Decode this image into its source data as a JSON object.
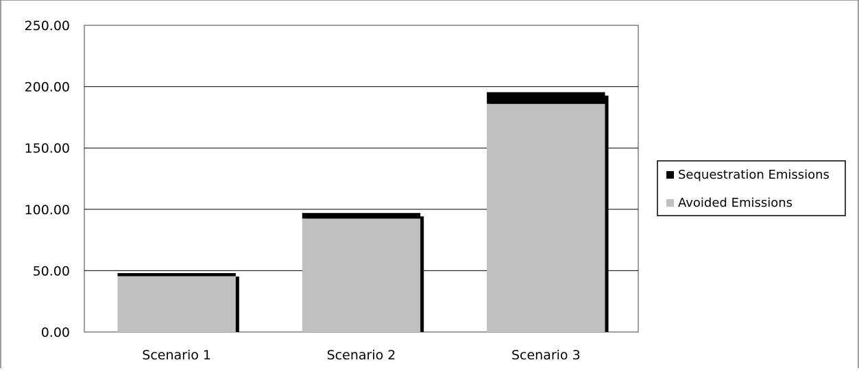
{
  "chart_data": {
    "type": "bar",
    "stacked": true,
    "categories": [
      "Scenario 1",
      "Scenario 2",
      "Scenario 3"
    ],
    "series": [
      {
        "name": "Avoided Emissions",
        "values": [
          45.5,
          92.5,
          186.0
        ],
        "color": "#c0c0c0"
      },
      {
        "name": "Sequestration Emissions",
        "values": [
          2.5,
          4.5,
          9.5
        ],
        "color": "#000000"
      }
    ],
    "y_ticks": [
      "0.00",
      "50.00",
      "100.00",
      "150.00",
      "200.00",
      "250.00"
    ],
    "ylim": [
      0,
      250
    ],
    "grid": true,
    "legend_position": "right"
  }
}
